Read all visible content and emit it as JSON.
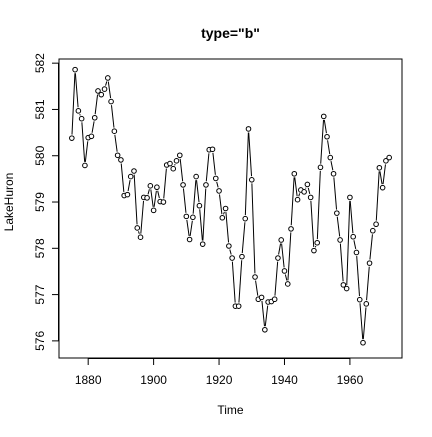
{
  "chart_data": {
    "type": "line",
    "title": "type=\"b\"",
    "xlabel": "Time",
    "ylabel": "LakeHuron",
    "xlim": [
      1871.08,
      1975.92
    ],
    "ylim": [
      575.63,
      582.09
    ],
    "xticks": [
      1880,
      1900,
      1920,
      1940,
      1960
    ],
    "yticks": [
      576,
      577,
      578,
      579,
      580,
      581,
      582
    ],
    "grid": false,
    "style": "points and lines (type b)",
    "series": [
      {
        "x": [
          1875,
          1876,
          1877,
          1878,
          1879,
          1880,
          1881,
          1882,
          1883,
          1884,
          1885,
          1886,
          1887,
          1888,
          1889,
          1890,
          1891,
          1892,
          1893,
          1894,
          1895,
          1896,
          1897,
          1898,
          1899,
          1900,
          1901,
          1902,
          1903,
          1904,
          1905,
          1906,
          1907,
          1908,
          1909,
          1910,
          1911,
          1912,
          1913,
          1914,
          1915,
          1916,
          1917,
          1918,
          1919,
          1920,
          1921,
          1922,
          1923,
          1924,
          1925,
          1926,
          1927,
          1928,
          1929,
          1930,
          1931,
          1932,
          1933,
          1934,
          1935,
          1936,
          1937,
          1938,
          1939,
          1940,
          1941,
          1942,
          1943,
          1944,
          1945,
          1946,
          1947,
          1948,
          1949,
          1950,
          1951,
          1952,
          1953,
          1954,
          1955,
          1956,
          1957,
          1958,
          1959,
          1960,
          1961,
          1962,
          1963,
          1964,
          1965,
          1966,
          1967,
          1968,
          1969,
          1970,
          1971,
          1972
        ],
        "values": [
          580.38,
          581.86,
          580.97,
          580.8,
          579.79,
          580.39,
          580.42,
          580.82,
          581.4,
          581.32,
          581.44,
          581.68,
          581.17,
          580.53,
          580.01,
          579.91,
          579.14,
          579.16,
          579.55,
          579.67,
          578.44,
          578.24,
          579.1,
          579.09,
          579.35,
          578.82,
          579.32,
          579.01,
          579.0,
          579.8,
          579.83,
          579.72,
          579.89,
          580.01,
          579.37,
          578.69,
          578.19,
          578.67,
          579.55,
          578.92,
          578.09,
          579.37,
          580.13,
          580.14,
          579.51,
          579.24,
          578.66,
          578.86,
          578.05,
          577.79,
          576.75,
          576.75,
          577.82,
          578.64,
          580.58,
          579.48,
          577.38,
          576.9,
          576.94,
          576.24,
          576.84,
          576.85,
          576.9,
          577.79,
          578.18,
          577.51,
          577.23,
          578.42,
          579.61,
          579.05,
          579.26,
          579.22,
          579.38,
          579.1,
          577.95,
          578.12,
          579.75,
          580.85,
          580.41,
          579.96,
          579.61,
          578.76,
          578.18,
          577.21,
          577.13,
          579.1,
          578.25,
          577.91,
          576.89,
          575.96,
          576.8,
          577.68,
          578.38,
          578.52,
          579.74,
          579.31,
          579.89,
          579.96
        ]
      }
    ]
  }
}
